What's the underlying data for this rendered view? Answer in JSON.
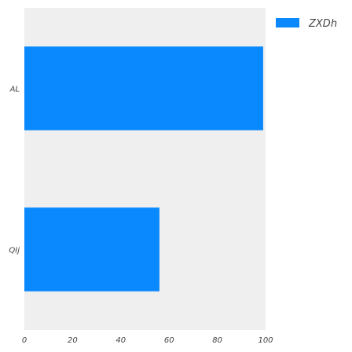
{
  "chart_data": {
    "type": "bar",
    "orientation": "horizontal",
    "categories": [
      "AL",
      "QIj"
    ],
    "series": [
      {
        "name": "ZXDh",
        "values": [
          99,
          56
        ],
        "color": "#0a89ff"
      }
    ],
    "xlim": [
      0,
      100
    ],
    "x_ticks": [
      0,
      20,
      40,
      60,
      80,
      100
    ],
    "title": "",
    "xlabel": "",
    "ylabel": "",
    "grid": false,
    "legend_position": "top-right",
    "plot_background": "#efefef"
  }
}
